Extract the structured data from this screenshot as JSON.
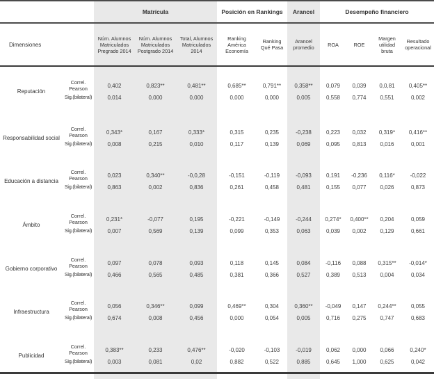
{
  "colors": {
    "stripe": "#e9e9e9",
    "border": "#3a3a3a",
    "text": "#3f3f3f"
  },
  "header": {
    "dimensiones_label": "Dimensiones",
    "groups": [
      {
        "label": "Matrícula",
        "span": 3
      },
      {
        "label": "Posición en Rankings",
        "span": 2
      },
      {
        "label": "Arancel",
        "span": 1
      },
      {
        "label": "Desempeño financiero",
        "span": 4
      }
    ],
    "columns": [
      "Núm. Alumnos Matriculados Pregrado 2014",
      "Núm. Alumnos Matriculados Postgrado 2014",
      "Total, Alumnos Matriculados 2014",
      "Ranking América Economía",
      "Ranking Qué Pasa",
      "Arancel promedio",
      "ROA",
      "ROE",
      "Margen utilidad bruta",
      "Resultado operacional"
    ]
  },
  "row_labels": {
    "pearson": "Correl. Pearson",
    "sig": "Sig.(bilateral)"
  },
  "rows": [
    {
      "dimension": "Reputación",
      "pearson": [
        "0,402",
        "0,823**",
        "0,481**",
        "0,685**",
        "0,791**",
        "0,358**",
        "0,079",
        "0,039",
        "0,0,81",
        "0,405**"
      ],
      "sig": [
        "0,014",
        "0,000",
        "0,000",
        "0,000",
        "0,000",
        "0,005",
        "0,558",
        "0,774",
        "0,551",
        "0,002"
      ]
    },
    {
      "dimension": "Responsabilidad social",
      "pearson": [
        "0,343*",
        "0,167",
        "0,333*",
        "0,315",
        "0,235",
        "-0,238",
        "0,223",
        "0,032",
        "0,319*",
        "0,416**"
      ],
      "sig": [
        "0,008",
        "0,215",
        "0,010",
        "0,117",
        "0,139",
        "0,069",
        "0,095",
        "0,813",
        "0,016",
        "0,001"
      ]
    },
    {
      "dimension": "Educación a distancia",
      "pearson": [
        "0,023",
        "0,340**",
        "-0,0,28",
        "-0,151",
        "-0,119",
        "-0,093",
        "0,191",
        "-0,236",
        "0,116*",
        "-0,022"
      ],
      "sig": [
        "0,863",
        "0,002",
        "0,836",
        "0,261",
        "0,458",
        "0,481",
        "0,155",
        "0,077",
        "0,026",
        "0,873"
      ]
    },
    {
      "dimension": "Ámbito",
      "pearson": [
        "0,231*",
        "-0,077",
        "0,195",
        "-0,221",
        "-0,149",
        "-0,244",
        "0,274*",
        "0,400**",
        "0,204",
        "0,059"
      ],
      "sig": [
        "0,007",
        "0,569",
        "0,139",
        "0,099",
        "0,353",
        "0,063",
        "0,039",
        "0,002",
        "0,129",
        "0,661"
      ]
    },
    {
      "dimension": "Gobierno corporativo",
      "pearson": [
        "0,097",
        "0,078",
        "0,093",
        "0,118",
        "0,145",
        "0,084",
        "-0,116",
        "0,088",
        "0,315**",
        "-0,014*"
      ],
      "sig": [
        "0,466",
        "0,565",
        "0,485",
        "0,381",
        "0,366",
        "0,527",
        "0,389",
        "0,513",
        "0,004",
        "0,034"
      ]
    },
    {
      "dimension": "Infraestructura",
      "pearson": [
        "0,056",
        "0,346**",
        "0,099",
        "0,469**",
        "0,304",
        "0,360**",
        "-0,049",
        "0,147",
        "0,244**",
        "0,055"
      ],
      "sig": [
        "0,674",
        "0,008",
        "0,456",
        "0,000",
        "0,054",
        "0,005",
        "0,716",
        "0,275",
        "0,747",
        "0,683"
      ]
    },
    {
      "dimension": "Publicidad",
      "pearson": [
        "0,383**",
        "0,233",
        "0,476**",
        "-0,020",
        "-0,103",
        "-0,019",
        "0,062",
        "0,000",
        "0,066",
        "0,240*"
      ],
      "sig": [
        "0,003",
        "0,081",
        "0,02",
        "0,882",
        "0,522",
        "0,885",
        "0,645",
        "1,000",
        "0,625",
        "0,042"
      ]
    }
  ]
}
